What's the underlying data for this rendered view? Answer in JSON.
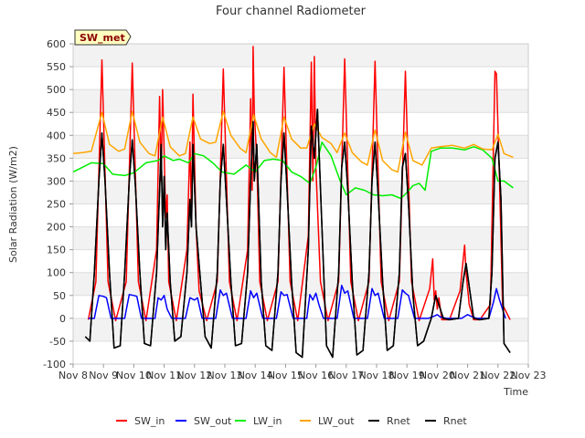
{
  "chart_data": {
    "type": "line",
    "title": "Four channel Radiometer",
    "xlabel": "Time",
    "ylabel": "Solar Radiation (W/m2)",
    "station_label": "SW_met",
    "xlim": [
      8,
      23
    ],
    "ylim": [
      -100,
      600
    ],
    "yticks": [
      -100,
      -50,
      0,
      50,
      100,
      150,
      200,
      250,
      300,
      350,
      400,
      450,
      500,
      550,
      600
    ],
    "xticks": [
      {
        "value": 8,
        "label": "Nov 8"
      },
      {
        "value": 9,
        "label": "Nov 9"
      },
      {
        "value": 10,
        "label": "Nov 10"
      },
      {
        "value": 11,
        "label": "Nov 11"
      },
      {
        "value": 12,
        "label": "Nov 12"
      },
      {
        "value": 13,
        "label": "Nov 13"
      },
      {
        "value": 14,
        "label": "Nov 14"
      },
      {
        "value": 15,
        "label": "Nov 15"
      },
      {
        "value": 16,
        "label": "Nov 16"
      },
      {
        "value": 17,
        "label": "Nov 17"
      },
      {
        "value": 18,
        "label": "Nov 18"
      },
      {
        "value": 19,
        "label": "Nov 19"
      },
      {
        "value": 20,
        "label": "Nov 20"
      },
      {
        "value": 21,
        "label": "Nov 21"
      },
      {
        "value": 22,
        "label": "Nov 22"
      },
      {
        "value": 23,
        "label": "Nov 23"
      }
    ],
    "legend": [
      {
        "name": "SW_in",
        "color": "#ff0000"
      },
      {
        "name": "SW_out",
        "color": "#0000ff"
      },
      {
        "name": "LW_in",
        "color": "#00ee00"
      },
      {
        "name": "LW_out",
        "color": "#ffa500"
      },
      {
        "name": "Rnet",
        "color": "#000000"
      },
      {
        "name": "Rnet",
        "color": "#000000"
      }
    ],
    "series": [
      {
        "name": "SW_in",
        "color": "#ff0000",
        "x": [
          8.5,
          8.75,
          8.95,
          9.15,
          9.4,
          9.75,
          9.95,
          10.15,
          10.4,
          10.75,
          10.85,
          10.9,
          10.95,
          11.05,
          11.1,
          11.15,
          11.4,
          11.75,
          11.85,
          11.9,
          11.95,
          12.05,
          12.15,
          12.4,
          12.75,
          12.95,
          13.15,
          13.4,
          13.75,
          13.85,
          13.9,
          13.93,
          13.97,
          14.05,
          14.15,
          14.4,
          14.75,
          14.95,
          15.15,
          15.4,
          15.75,
          15.85,
          15.9,
          15.95,
          16.0,
          16.15,
          16.4,
          16.75,
          16.95,
          17.15,
          17.4,
          17.75,
          17.95,
          18.15,
          18.4,
          18.75,
          18.95,
          19.15,
          19.4,
          19.75,
          19.85,
          19.9,
          19.95,
          20.0,
          20.05,
          20.15,
          20.4,
          20.75,
          20.9,
          20.95,
          21.05,
          21.2,
          21.4,
          21.75,
          21.9,
          21.95,
          22.05,
          22.15,
          22.4
        ],
        "y": [
          -3,
          80,
          565,
          80,
          -5,
          80,
          558,
          80,
          -5,
          150,
          485,
          300,
          500,
          220,
          270,
          80,
          -5,
          150,
          385,
          220,
          490,
          200,
          60,
          -5,
          80,
          545,
          80,
          -5,
          150,
          480,
          280,
          594,
          450,
          350,
          80,
          -5,
          80,
          549,
          80,
          -5,
          180,
          560,
          300,
          572,
          330,
          80,
          -5,
          80,
          567,
          80,
          -5,
          80,
          562,
          80,
          -5,
          80,
          540,
          80,
          -5,
          65,
          130,
          40,
          60,
          20,
          45,
          -3,
          -3,
          60,
          160,
          100,
          30,
          -3,
          -3,
          30,
          540,
          535,
          300,
          30,
          -3
        ]
      },
      {
        "name": "SW_out",
        "color": "#0000ff",
        "x": [
          8.5,
          8.7,
          8.85,
          9.0,
          9.1,
          9.25,
          9.7,
          9.85,
          10.0,
          10.1,
          10.25,
          10.7,
          10.8,
          10.9,
          11.0,
          11.1,
          11.25,
          11.7,
          11.85,
          12.0,
          12.1,
          12.25,
          12.7,
          12.85,
          12.95,
          13.05,
          13.25,
          13.7,
          13.85,
          13.95,
          14.05,
          14.25,
          14.7,
          14.85,
          14.95,
          15.05,
          15.25,
          15.7,
          15.8,
          15.9,
          16.0,
          16.1,
          16.25,
          16.7,
          16.85,
          16.95,
          17.05,
          17.25,
          17.7,
          17.85,
          17.95,
          18.05,
          18.25,
          18.7,
          18.85,
          18.95,
          19.05,
          19.25,
          19.7,
          19.9,
          20.0,
          20.1,
          20.3,
          20.8,
          21.0,
          21.1,
          21.3,
          21.7,
          21.85,
          21.95,
          22.05,
          22.25
        ],
        "y": [
          0,
          0,
          50,
          48,
          45,
          0,
          0,
          52,
          50,
          48,
          0,
          0,
          45,
          40,
          50,
          20,
          0,
          0,
          45,
          40,
          45,
          0,
          0,
          62,
          50,
          55,
          0,
          0,
          60,
          45,
          55,
          0,
          0,
          58,
          50,
          52,
          0,
          0,
          52,
          40,
          55,
          30,
          0,
          0,
          72,
          55,
          60,
          0,
          0,
          65,
          50,
          55,
          0,
          0,
          62,
          55,
          50,
          0,
          0,
          5,
          8,
          3,
          0,
          0,
          8,
          5,
          0,
          0,
          35,
          65,
          40,
          0
        ]
      },
      {
        "name": "LW_in",
        "color": "#00ee00",
        "x": [
          8.0,
          8.3,
          8.6,
          9.0,
          9.3,
          9.7,
          10.0,
          10.4,
          10.8,
          11.0,
          11.3,
          11.5,
          11.8,
          12.0,
          12.3,
          12.6,
          12.9,
          13.3,
          13.7,
          14.0,
          14.3,
          14.6,
          14.9,
          15.2,
          15.5,
          15.8,
          16.0,
          16.2,
          16.5,
          16.8,
          17.0,
          17.3,
          17.6,
          17.9,
          18.2,
          18.5,
          18.8,
          19.0,
          19.2,
          19.4,
          19.6,
          19.8,
          20.1,
          20.5,
          20.9,
          21.2,
          21.5,
          21.8,
          22.0,
          22.2,
          22.5
        ],
        "y": [
          320,
          330,
          340,
          338,
          315,
          312,
          318,
          340,
          345,
          355,
          345,
          348,
          340,
          360,
          355,
          340,
          320,
          315,
          335,
          320,
          345,
          348,
          345,
          320,
          310,
          295,
          330,
          385,
          355,
          300,
          270,
          285,
          280,
          270,
          268,
          270,
          262,
          275,
          290,
          295,
          280,
          365,
          372,
          372,
          368,
          375,
          368,
          350,
          300,
          300,
          285
        ]
      },
      {
        "name": "LW_out",
        "color": "#ffa500",
        "x": [
          8.0,
          8.3,
          8.6,
          8.95,
          9.2,
          9.5,
          9.7,
          9.95,
          10.2,
          10.5,
          10.7,
          10.95,
          11.2,
          11.5,
          11.7,
          11.95,
          12.2,
          12.5,
          12.7,
          12.95,
          13.2,
          13.5,
          13.7,
          13.95,
          14.2,
          14.5,
          14.7,
          14.95,
          15.2,
          15.5,
          15.7,
          15.95,
          16.2,
          16.5,
          16.7,
          16.95,
          17.2,
          17.5,
          17.7,
          17.95,
          18.2,
          18.5,
          18.7,
          18.95,
          19.2,
          19.5,
          19.8,
          20.1,
          20.5,
          20.9,
          21.2,
          21.5,
          21.8,
          22.0,
          22.2,
          22.5
        ],
        "y": [
          360,
          362,
          365,
          450,
          380,
          365,
          370,
          452,
          385,
          360,
          355,
          440,
          375,
          355,
          360,
          440,
          392,
          382,
          385,
          452,
          400,
          372,
          362,
          445,
          392,
          362,
          352,
          440,
          392,
          372,
          372,
          425,
          395,
          382,
          362,
          405,
          362,
          342,
          335,
          412,
          345,
          325,
          320,
          407,
          345,
          335,
          372,
          375,
          378,
          372,
          380,
          370,
          368,
          402,
          360,
          352
        ]
      },
      {
        "name": "Rnet",
        "color": "#000000",
        "x": [
          8.4,
          8.55,
          8.7,
          8.85,
          8.95,
          9.05,
          9.2,
          9.35,
          9.55,
          9.7,
          9.85,
          9.95,
          10.05,
          10.2,
          10.35,
          10.55,
          10.75,
          10.85,
          10.9,
          10.95,
          11.0,
          11.05,
          11.1,
          11.2,
          11.35,
          11.55,
          11.75,
          11.85,
          11.9,
          11.95,
          12.05,
          12.2,
          12.35,
          12.55,
          12.75,
          12.85,
          12.95,
          13.05,
          13.2,
          13.35,
          13.55,
          13.75,
          13.85,
          13.93,
          13.97,
          14.05,
          14.2,
          14.35,
          14.55,
          14.75,
          14.85,
          14.95,
          15.05,
          15.2,
          15.35,
          15.55,
          15.75,
          15.85,
          15.95,
          16.05,
          16.2,
          16.35,
          16.55,
          16.75,
          16.85,
          16.95,
          17.05,
          17.2,
          17.35,
          17.55,
          17.75,
          17.85,
          17.95,
          18.05,
          18.2,
          18.35,
          18.55,
          18.75,
          18.85,
          18.95,
          19.05,
          19.2,
          19.35,
          19.55,
          19.8,
          19.95,
          20.05,
          20.2,
          20.4,
          20.7,
          20.85,
          20.95,
          21.05,
          21.2,
          21.4,
          21.7,
          21.8,
          21.9,
          22.0,
          22.1,
          22.2,
          22.4
        ],
        "y": [
          -40,
          -50,
          100,
          300,
          405,
          300,
          100,
          -65,
          -60,
          100,
          300,
          390,
          290,
          100,
          -55,
          -60,
          100,
          280,
          380,
          200,
          310,
          150,
          230,
          80,
          -50,
          -40,
          100,
          260,
          200,
          380,
          200,
          80,
          -40,
          -65,
          100,
          300,
          380,
          260,
          80,
          -60,
          -55,
          100,
          300,
          430,
          300,
          380,
          80,
          -60,
          -70,
          100,
          300,
          405,
          280,
          80,
          -75,
          -85,
          150,
          420,
          350,
          457,
          200,
          -60,
          -85,
          100,
          330,
          385,
          280,
          80,
          -80,
          -70,
          100,
          300,
          385,
          270,
          80,
          -70,
          -60,
          100,
          330,
          360,
          250,
          50,
          -60,
          -50,
          0,
          50,
          30,
          0,
          -3,
          0,
          80,
          120,
          70,
          0,
          -3,
          0,
          100,
          350,
          385,
          260,
          -55,
          -75
        ]
      },
      {
        "name": "Rnet",
        "color": "#000000",
        "x": [
          8.4,
          8.55,
          8.7,
          8.85,
          8.95,
          9.05,
          9.2,
          9.35,
          9.55,
          9.7,
          9.85,
          9.95,
          10.05,
          10.2,
          10.35,
          10.55,
          10.75,
          10.85,
          10.9,
          10.95,
          11.0,
          11.05,
          11.1,
          11.2,
          11.35,
          11.55,
          11.75,
          11.85,
          11.9,
          11.95,
          12.05,
          12.2,
          12.35,
          12.55,
          12.75,
          12.85,
          12.95,
          13.05,
          13.2,
          13.35,
          13.55,
          13.75,
          13.85,
          13.93,
          13.97,
          14.05,
          14.2,
          14.35,
          14.55,
          14.75,
          14.85,
          14.95,
          15.05,
          15.2,
          15.35,
          15.55,
          15.75,
          15.85,
          15.95,
          16.05,
          16.2,
          16.35,
          16.55,
          16.75,
          16.85,
          16.95,
          17.05,
          17.2,
          17.35,
          17.55,
          17.75,
          17.85,
          17.95,
          18.05,
          18.2,
          18.35,
          18.55,
          18.75,
          18.85,
          18.95,
          19.05,
          19.2,
          19.35,
          19.55,
          19.8,
          19.95,
          20.05,
          20.2,
          20.4,
          20.7,
          20.85,
          20.95,
          21.05,
          21.2,
          21.4,
          21.7,
          21.8,
          21.9,
          22.0,
          22.1,
          22.2,
          22.4
        ],
        "y": [
          -40,
          -50,
          100,
          300,
          405,
          300,
          100,
          -65,
          -60,
          100,
          300,
          390,
          290,
          100,
          -55,
          -60,
          100,
          280,
          380,
          200,
          310,
          150,
          230,
          80,
          -50,
          -40,
          100,
          260,
          200,
          380,
          200,
          80,
          -40,
          -65,
          100,
          300,
          380,
          260,
          80,
          -60,
          -55,
          100,
          300,
          430,
          300,
          380,
          80,
          -60,
          -70,
          100,
          300,
          405,
          280,
          80,
          -75,
          -85,
          150,
          420,
          350,
          457,
          200,
          -60,
          -85,
          100,
          330,
          385,
          280,
          80,
          -80,
          -70,
          100,
          300,
          385,
          270,
          80,
          -70,
          -60,
          100,
          330,
          360,
          250,
          50,
          -60,
          -50,
          0,
          50,
          30,
          0,
          -3,
          0,
          80,
          120,
          70,
          0,
          -3,
          0,
          100,
          350,
          385,
          260,
          -55,
          -75
        ]
      }
    ]
  }
}
